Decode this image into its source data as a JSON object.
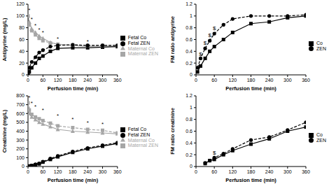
{
  "chart_data": [
    {
      "type": "line",
      "x_label": "Perfusion time (min)",
      "y_label": "Antipyrine (mg/L)",
      "grid": false,
      "legend": "right",
      "x": [
        0,
        5,
        15,
        30,
        45,
        60,
        90,
        120,
        180,
        240,
        300,
        360
      ],
      "xlim": [
        0,
        360
      ],
      "xticks": [
        0,
        60,
        120,
        180,
        240,
        300,
        360
      ],
      "ylim": [
        0,
        120
      ],
      "yticks": [
        0,
        20,
        40,
        60,
        80,
        100,
        120
      ],
      "series": [
        {
          "name": "Maternal Co",
          "color": "#a6a6a6",
          "marker": "triangle",
          "line_style": "solid",
          "values": [
            100,
            90,
            78,
            72,
            66,
            62,
            55,
            52,
            50,
            48,
            49,
            48
          ]
        },
        {
          "name": "Fetal Co",
          "color": "#000000",
          "marker": "square",
          "line_style": "solid",
          "values": [
            0,
            5,
            12,
            20,
            28,
            32,
            40,
            45,
            46,
            46,
            47,
            48
          ]
        },
        {
          "name": "Maternal ZEN",
          "color": "#a6a6a6",
          "marker": "square",
          "line_style": "dashed",
          "values": [
            100,
            85,
            75,
            68,
            62,
            58,
            54,
            52,
            51,
            50,
            50,
            50
          ]
        },
        {
          "name": "Fetal ZEN",
          "color": "#000000",
          "marker": "circle",
          "line_style": "dashed",
          "values": [
            0,
            12,
            22,
            30,
            38,
            42,
            48,
            50,
            51,
            50,
            50,
            50
          ]
        }
      ],
      "annotations": [
        {
          "x": 5,
          "y": 110,
          "text": "*"
        },
        {
          "x": 15,
          "y": 95,
          "text": "*"
        },
        {
          "x": 30,
          "y": 84,
          "text": "*"
        },
        {
          "x": 45,
          "y": 77,
          "text": "*"
        },
        {
          "x": 60,
          "y": 72,
          "text": "*"
        },
        {
          "x": 120,
          "y": 62,
          "text": "*"
        },
        {
          "x": 240,
          "y": 57,
          "text": "*"
        }
      ]
    },
    {
      "type": "line",
      "y_label": "FM ratio antipyrine",
      "x_label": "Perfusion time (min)",
      "grid": false,
      "legend": "right",
      "x": [
        5,
        15,
        30,
        45,
        60,
        90,
        120,
        180,
        240,
        300,
        360
      ],
      "xlim": [
        0,
        360
      ],
      "xticks": [
        0,
        60,
        120,
        180,
        240,
        300,
        360
      ],
      "ylim": [
        0,
        1.2
      ],
      "yticks": [
        0,
        0.2,
        0.4,
        0.6,
        0.8,
        1,
        1.2
      ],
      "series": [
        {
          "name": "Co",
          "color": "#000000",
          "marker": "square",
          "line_style": "solid",
          "values": [
            0.05,
            0.15,
            0.28,
            0.4,
            0.48,
            0.6,
            0.72,
            0.87,
            0.9,
            0.97,
            1.0
          ]
        },
        {
          "name": "ZEN",
          "color": "#000000",
          "marker": "circle",
          "line_style": "dashed",
          "values": [
            0.12,
            0.28,
            0.45,
            0.58,
            0.7,
            0.85,
            0.95,
            1.0,
            1.0,
            1.0,
            1.02
          ]
        }
      ],
      "annotations": [
        {
          "x": 15,
          "y": 0.36,
          "text": "$"
        },
        {
          "x": 30,
          "y": 0.54,
          "text": "$"
        },
        {
          "x": 45,
          "y": 0.68,
          "text": "$"
        },
        {
          "x": 60,
          "y": 0.8,
          "text": "$"
        }
      ]
    },
    {
      "type": "line",
      "x_label": "Perfusion time (min)",
      "y_label": "Creatinine (mg/L)",
      "grid": false,
      "legend": "right",
      "x": [
        0,
        5,
        15,
        30,
        45,
        60,
        90,
        120,
        180,
        240,
        300,
        360
      ],
      "xlim": [
        0,
        360
      ],
      "xticks": [
        0,
        60,
        120,
        180,
        240,
        300,
        360
      ],
      "ylim": [
        0,
        800
      ],
      "yticks": [
        0,
        100,
        200,
        300,
        400,
        500,
        600,
        700,
        800
      ],
      "series": [
        {
          "name": "Maternal Co",
          "color": "#a6a6a6",
          "marker": "triangle",
          "line_style": "solid",
          "values": [
            680,
            600,
            560,
            530,
            500,
            480,
            450,
            420,
            400,
            390,
            380,
            370
          ]
        },
        {
          "name": "Fetal Co",
          "color": "#000000",
          "marker": "square",
          "line_style": "solid",
          "values": [
            0,
            5,
            10,
            20,
            30,
            50,
            80,
            110,
            160,
            200,
            230,
            260
          ]
        },
        {
          "name": "Maternal ZEN",
          "color": "#a6a6a6",
          "marker": "square",
          "line_style": "dashed",
          "values": [
            720,
            640,
            590,
            560,
            540,
            520,
            490,
            460,
            440,
            420,
            410,
            380
          ]
        },
        {
          "name": "Fetal ZEN",
          "color": "#000000",
          "marker": "circle",
          "line_style": "dashed",
          "values": [
            0,
            5,
            12,
            25,
            35,
            55,
            90,
            120,
            170,
            210,
            240,
            270
          ]
        }
      ],
      "annotations": [
        {
          "x": 5,
          "y": 780,
          "text": "*"
        },
        {
          "x": 15,
          "y": 720,
          "text": "*"
        },
        {
          "x": 30,
          "y": 680,
          "text": "*"
        },
        {
          "x": 60,
          "y": 640,
          "text": "*"
        },
        {
          "x": 120,
          "y": 580,
          "text": "*"
        },
        {
          "x": 180,
          "y": 540,
          "text": "*"
        },
        {
          "x": 240,
          "y": 500,
          "text": "*"
        },
        {
          "x": 300,
          "y": 480,
          "text": "*"
        }
      ]
    },
    {
      "type": "line",
      "y_label": "FM ratio creatinine",
      "x_label": "Perfusion time (min)",
      "grid": false,
      "legend": "right",
      "x": [
        30,
        45,
        60,
        90,
        120,
        180,
        240,
        300,
        360
      ],
      "xlim": [
        0,
        360
      ],
      "xticks": [
        0,
        60,
        120,
        180,
        240,
        300,
        360
      ],
      "ylim": [
        0,
        1.2
      ],
      "yticks": [
        0,
        0.2,
        0.4,
        0.6,
        0.8,
        1,
        1.2
      ],
      "series": [
        {
          "name": "Co",
          "color": "#000000",
          "marker": "square",
          "line_style": "solid",
          "values": [
            0.05,
            0.1,
            0.12,
            0.2,
            0.27,
            0.38,
            0.47,
            0.6,
            0.67
          ]
        },
        {
          "name": "ZEN",
          "color": "#000000",
          "marker": "circle",
          "line_style": "dashed",
          "values": [
            0.06,
            0.1,
            0.15,
            0.22,
            0.3,
            0.45,
            0.5,
            0.62,
            0.75
          ]
        }
      ],
      "annotations": [
        {
          "x": 60,
          "y": 0.24,
          "text": "$"
        }
      ]
    }
  ]
}
